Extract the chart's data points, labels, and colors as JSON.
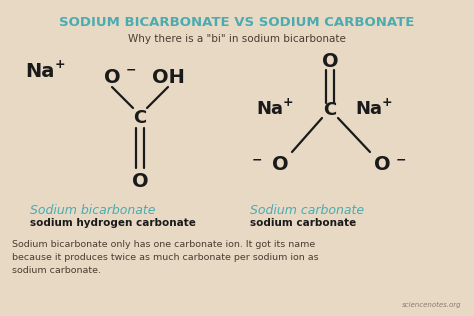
{
  "bg_color": "#e8d9c5",
  "title": "SODIUM BICARBONATE VS SODIUM CARBONATE",
  "subtitle": "Why there is a \"bi\" in sodium bicarbonate",
  "title_color": "#4aacb0",
  "subtitle_color": "#4a3c30",
  "label1": "Sodium bicarbonate",
  "label1_sub": "sodium hydrogen carbonate",
  "label2": "Sodium carbonate",
  "label2_sub": "sodium carbonate",
  "label_color": "#4aacb0",
  "label_sub_color": "#1a1a1a",
  "footnote": "Sodium bicarbonate only has one carbonate ion. It got its name\nbecause it produces twice as much carbonate per sodium ion as\nsodium carbonate.",
  "watermark": "sciencenotes.org",
  "bond_color": "#1a1a1a",
  "text_color": "#1a1a1a"
}
